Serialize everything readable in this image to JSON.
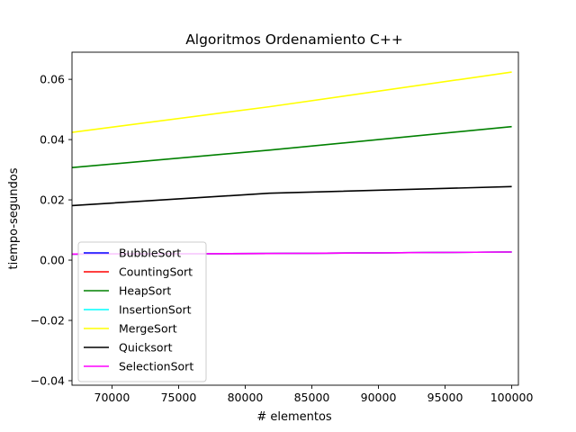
{
  "chart_data": {
    "type": "line",
    "title": "Algoritmos Ordenamiento C++",
    "xlabel": "# elementos",
    "ylabel": "tiempo-segundos",
    "xlim": [
      67000,
      100500
    ],
    "ylim": [
      -0.0415,
      0.069
    ],
    "xticks": [
      70000,
      75000,
      80000,
      85000,
      90000,
      95000,
      100000
    ],
    "yticks": [
      -0.04,
      -0.02,
      0.0,
      0.02,
      0.04,
      0.06
    ],
    "xtick_labels": [
      "70000",
      "75000",
      "80000",
      "85000",
      "90000",
      "95000",
      "100000"
    ],
    "ytick_labels": [
      "−0.04",
      "−0.02",
      "0.00",
      "0.02",
      "0.04",
      "0.06"
    ],
    "grid": false,
    "legend_position": "lower-left",
    "series": [
      {
        "name": "BubbleSort",
        "color": "#0000ff",
        "x": [
          67000,
          81800,
          100000
        ],
        "y": [
          0.002,
          0.0022,
          0.0027
        ]
      },
      {
        "name": "CountingSort",
        "color": "#ff0000",
        "x": [
          67000,
          81800,
          100000
        ],
        "y": [
          0.002,
          0.0022,
          0.0027
        ]
      },
      {
        "name": "HeapSort",
        "color": "#008000",
        "x": [
          67000,
          81800,
          100000
        ],
        "y": [
          0.0307,
          0.0365,
          0.0443
        ]
      },
      {
        "name": "InsertionSort",
        "color": "#00ffff",
        "x": [
          67000,
          81800,
          100000
        ],
        "y": [
          0.002,
          0.0022,
          0.0027
        ]
      },
      {
        "name": "MergeSort",
        "color": "#ffff00",
        "x": [
          67000,
          81800,
          100000
        ],
        "y": [
          0.0424,
          0.0509,
          0.0624
        ]
      },
      {
        "name": "Quicksort",
        "color": "#000000",
        "x": [
          67000,
          81800,
          100000
        ],
        "y": [
          0.0181,
          0.0222,
          0.0244
        ]
      },
      {
        "name": "SelectionSort",
        "color": "#ff00ff",
        "x": [
          67000,
          81800,
          100000
        ],
        "y": [
          0.002,
          0.0022,
          0.0027
        ]
      }
    ]
  }
}
